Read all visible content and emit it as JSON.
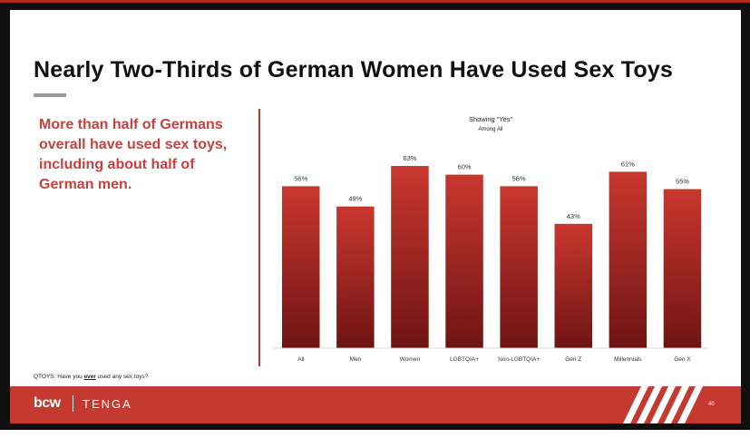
{
  "slide": {
    "title": "Nearly Two-Thirds of German Women Have Used Sex Toys",
    "callout": "More than half of Germans overall have used sex toys, including about half of German men.",
    "footnote_prefix": "QTOYS: Have you ",
    "footnote_emphasis": "ever",
    "footnote_suffix": " used any sex toys?",
    "logo_left": "bcw",
    "logo_right": "TENGA",
    "page_number": "40"
  },
  "colors": {
    "accent": "#c43a30",
    "bar_top": "#c9372f",
    "bar_bottom": "#6e1414",
    "callout_text": "#c8413c"
  },
  "chart_data": {
    "type": "bar",
    "title": "Showing “Yes”",
    "subtitle": "Among All",
    "categories": [
      "All",
      "Men",
      "Women",
      "LGBTQIA+",
      "Non-LGBTQIA+",
      "Gen Z",
      "Millennials",
      "Gen X"
    ],
    "values": [
      56,
      49,
      63,
      60,
      56,
      43,
      61,
      55
    ],
    "value_labels": [
      "56%",
      "49%",
      "63%",
      "60%",
      "56%",
      "43%",
      "61%",
      "55%"
    ],
    "unit": "%",
    "xlabel": "",
    "ylabel": "",
    "ylim": [
      0,
      100
    ],
    "grid": false,
    "legend": "none"
  }
}
